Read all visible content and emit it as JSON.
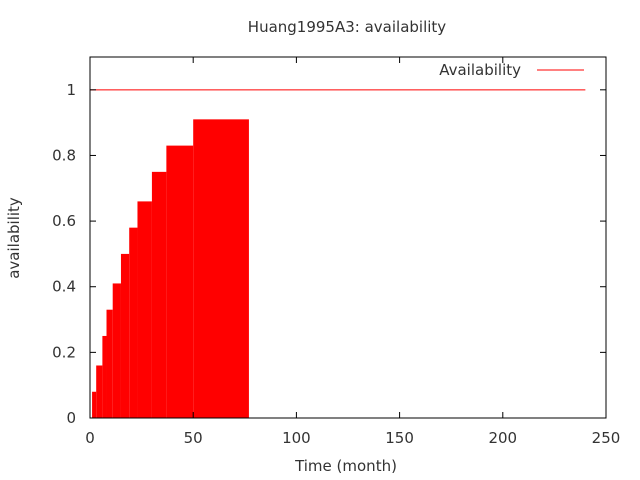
{
  "chart_data": {
    "type": "area",
    "title": "Huang1995A3: availability",
    "xlabel": "Time (month)",
    "ylabel": "availability",
    "xlim": [
      0,
      250
    ],
    "ylim": [
      0,
      1.1
    ],
    "x_ticks": [
      0,
      50,
      100,
      150,
      200,
      250
    ],
    "y_ticks": [
      0,
      0.2,
      0.4,
      0.6,
      0.8,
      1
    ],
    "x_tick_labels": [
      "0",
      "50",
      "100",
      "150",
      "200",
      "250"
    ],
    "y_tick_labels": [
      "0",
      "0.2",
      "0.4",
      "0.6",
      "0.8",
      "1"
    ],
    "grid": false,
    "legend_position": "top-right",
    "series": [
      {
        "name": "Availability",
        "color": "#ff0000",
        "style": "step-fill",
        "points": [
          {
            "x": 0,
            "y": 0
          },
          {
            "x": 1,
            "y": 0.08
          },
          {
            "x": 3,
            "y": 0.16
          },
          {
            "x": 6,
            "y": 0.25
          },
          {
            "x": 8,
            "y": 0.33
          },
          {
            "x": 11,
            "y": 0.41
          },
          {
            "x": 15,
            "y": 0.5
          },
          {
            "x": 19,
            "y": 0.58
          },
          {
            "x": 23,
            "y": 0.66
          },
          {
            "x": 30,
            "y": 0.75
          },
          {
            "x": 37,
            "y": 0.83
          },
          {
            "x": 50,
            "y": 0.91
          },
          {
            "x": 77,
            "y": 1
          },
          {
            "x": 240,
            "y": 1
          }
        ]
      }
    ]
  }
}
